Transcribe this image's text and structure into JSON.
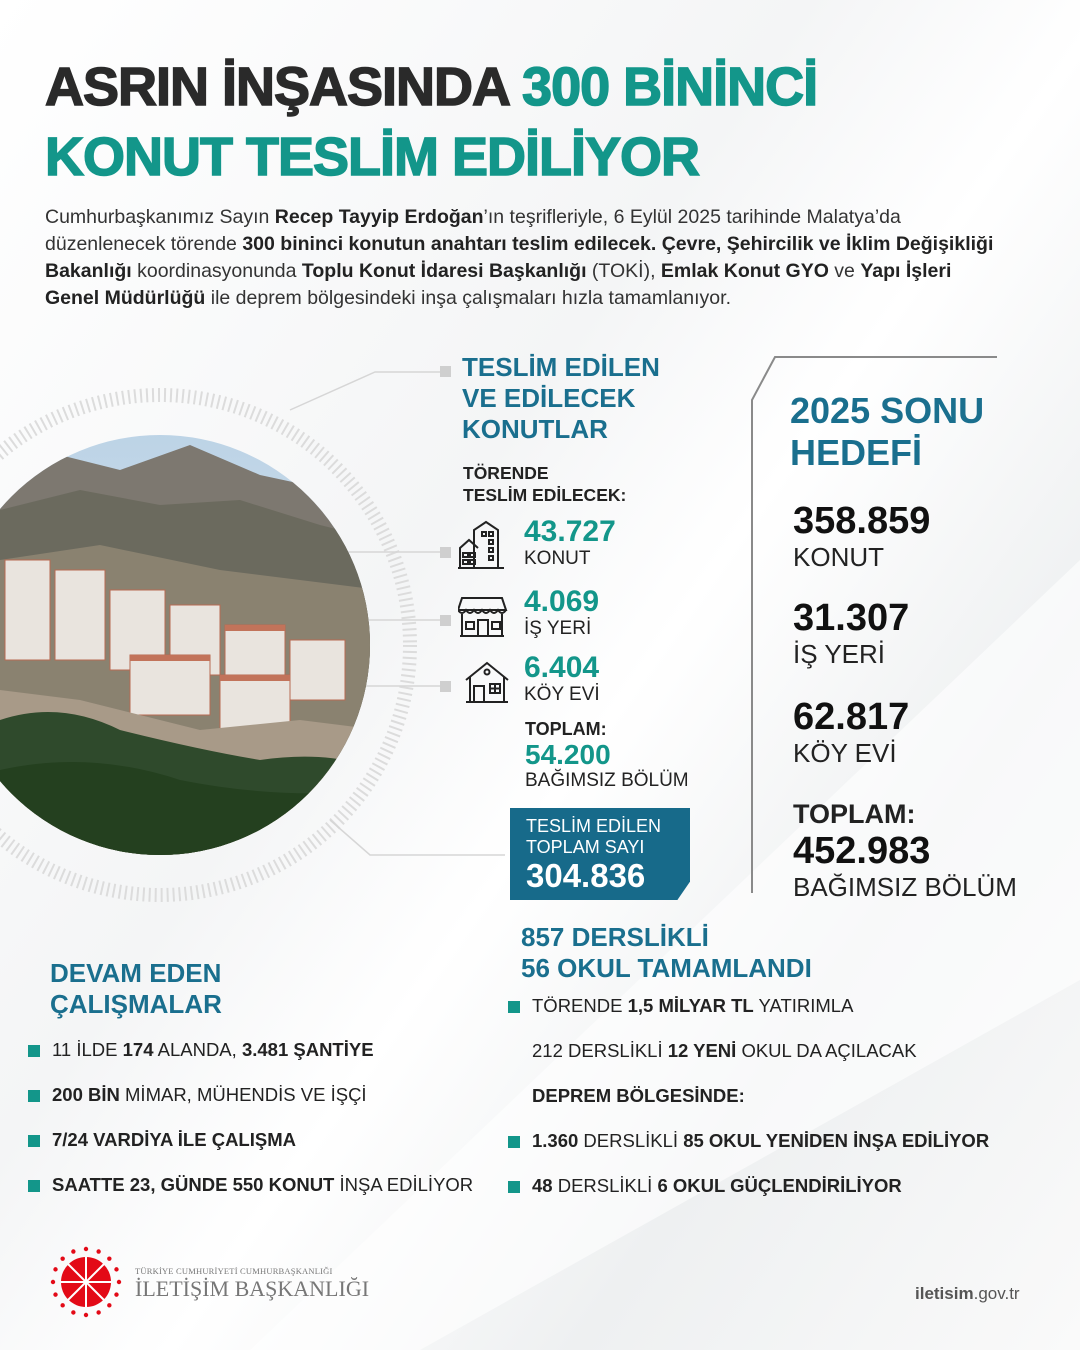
{
  "title": {
    "line1_dark": "ASRIN İNŞASINDA ",
    "line1_teal": "300 BİNİNCİ",
    "line2": "KONUT TESLİM EDİLİYOR"
  },
  "intro": [
    {
      "t": "Cumhurbaşkanımız Sayın "
    },
    {
      "t": "Recep Tayyip Erdoğan",
      "b": true
    },
    {
      "t": "’ın teşrifleriyle, 6 Eylül 2025 tarihinde Malatya’da düzenlenecek törende "
    },
    {
      "t": "300 bininci konutun anahtarı teslim edilecek. Çevre, Şehircilik ve İklim Değişikliği Bakanlığı",
      "b": true
    },
    {
      "t": " koordinasyonunda "
    },
    {
      "t": "Toplu Konut İdaresi Başkanlığı",
      "b": true
    },
    {
      "t": " (TOKİ), "
    },
    {
      "t": "Emlak Konut GYO",
      "b": true
    },
    {
      "t": " ve "
    },
    {
      "t": "Yapı İşleri Genel Müdürlüğü",
      "b": true
    },
    {
      "t": " ile deprem bölgesindeki inşa çalışmaları hızla tamamlanıyor."
    }
  ],
  "delivered": {
    "heading": [
      "TESLİM EDİLEN",
      "VE EDİLECEK",
      "KONUTLAR"
    ],
    "ceremony_label": [
      "TÖRENDE",
      "TESLİM EDİLECEK:"
    ],
    "items": [
      {
        "icon": "apartment-building-icon",
        "value": "43.727",
        "label": "KONUT"
      },
      {
        "icon": "shop-icon",
        "value": "4.069",
        "label": "İŞ YERİ"
      },
      {
        "icon": "house-icon",
        "value": "6.404",
        "label": "KÖY EVİ"
      }
    ],
    "total_label": "TOPLAM:",
    "total_value": "54.200",
    "total_unit": "BAĞIMSIZ BÖLÜM",
    "box": {
      "line1": "TESLİM EDİLEN",
      "line2": "TOPLAM SAYI",
      "value": "304.836"
    }
  },
  "target": {
    "heading": [
      "2025 SONU",
      "HEDEFİ"
    ],
    "items": [
      {
        "value": "358.859",
        "label": "KONUT"
      },
      {
        "value": "31.307",
        "label": "İŞ YERİ"
      },
      {
        "value": "62.817",
        "label": "KÖY EVİ"
      }
    ],
    "total_label": "TOPLAM:",
    "total_value": "452.983",
    "total_unit": "BAĞIMSIZ BÖLÜM"
  },
  "ongoing": {
    "heading": [
      "DEVAM EDEN",
      "ÇALIŞMALAR"
    ],
    "bullets": [
      [
        {
          "t": "11 İLDE "
        },
        {
          "t": "174",
          "b": true
        },
        {
          "t": " ALANDA, "
        },
        {
          "t": "3.481 ŞANTİYE",
          "b": true
        }
      ],
      [
        {
          "t": "200 BİN",
          "b": true
        },
        {
          "t": " MİMAR, MÜHENDİS VE İŞÇİ"
        }
      ],
      [
        {
          "t": "7/24 VARDİYA İLE ÇALIŞMA",
          "b": true
        }
      ],
      [
        {
          "t": "SAATTE 23, GÜNDE 550 KONUT",
          "b": true
        },
        {
          "t": " İNŞA EDİLİYOR"
        }
      ]
    ]
  },
  "schools": {
    "heading": [
      "857 DERSLİKLİ",
      "56 OKUL TAMAMLANDI"
    ],
    "lines": [
      {
        "bullet": true,
        "seg": [
          {
            "t": "TÖRENDE "
          },
          {
            "t": "1,5 MİLYAR TL",
            "b": true
          },
          {
            "t": " YATIRIMLA"
          }
        ]
      },
      {
        "bullet": false,
        "seg": [
          {
            "t": "212 DERSLİKLİ "
          },
          {
            "t": "12 YENİ",
            "b": true
          },
          {
            "t": " OKUL DA AÇILACAK"
          }
        ]
      },
      {
        "bullet": false,
        "seg": [
          {
            "t": "DEPREM BÖLGESİNDE:",
            "b": true
          }
        ]
      },
      {
        "bullet": true,
        "seg": [
          {
            "t": "1.360",
            "b": true
          },
          {
            "t": " DERSLİKLİ "
          },
          {
            "t": "85 OKUL YENİDEN İNŞA EDİLİYOR",
            "b": true
          }
        ]
      },
      {
        "bullet": true,
        "seg": [
          {
            "t": "48",
            "b": true
          },
          {
            "t": " DERSLİKLİ "
          },
          {
            "t": "6 OKUL GÜÇLENDİRİLİYOR",
            "b": true
          }
        ]
      }
    ]
  },
  "footer": {
    "org_small": "TÜRKİYE CUMHURİYETİ CUMHURBAŞKANLIĞI",
    "org_name": "İLETİŞİM BAŞKANLIĞI",
    "url_bold": "iletisim",
    "url_rest": ".gov.tr"
  },
  "colors": {
    "teal": "#13968a",
    "blue": "#1a6f8e",
    "logo_red": "#e30a17"
  }
}
